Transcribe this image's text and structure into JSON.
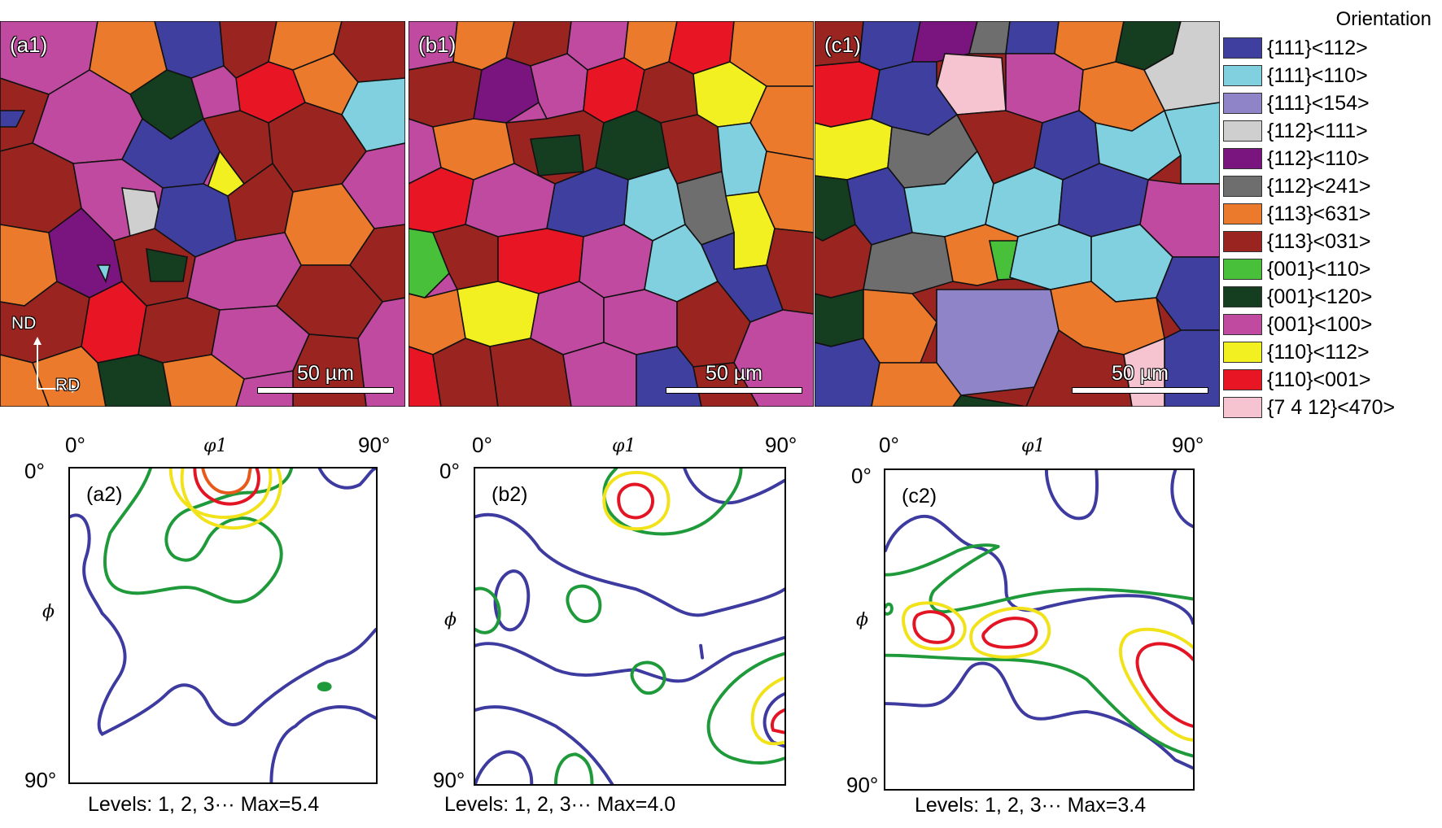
{
  "maps": [
    {
      "label": "(a1)",
      "scale": "50 µm",
      "nd": "ND",
      "rd": "RD"
    },
    {
      "label": "(b1)",
      "scale": "50 µm"
    },
    {
      "label": "(c1)",
      "scale": "50 µm"
    }
  ],
  "legend": {
    "title": "Orientation",
    "items": [
      {
        "label": "{111}<112>",
        "color": "#3f3fa0"
      },
      {
        "label": "{111}<110>",
        "color": "#80d0e0"
      },
      {
        "label": "{111}<154>",
        "color": "#8f84c8"
      },
      {
        "label": "{112}<111>",
        "color": "#cfcfcf"
      },
      {
        "label": "{112}<110>",
        "color": "#7a157f"
      },
      {
        "label": "{112}<241>",
        "color": "#6e6e6e"
      },
      {
        "label": "{113}<631>",
        "color": "#ec7a2c"
      },
      {
        "label": "{113}<031>",
        "color": "#9a2520"
      },
      {
        "label": "{001}<110>",
        "color": "#48c03a"
      },
      {
        "label": "{001}<120>",
        "color": "#153e20"
      },
      {
        "label": "{001}<100>",
        "color": "#c04aa0"
      },
      {
        "label": "{110}<112>",
        "color": "#f2f020"
      },
      {
        "label": "{110}<001>",
        "color": "#e81525"
      },
      {
        "label": "{7 4 12}<470>",
        "color": "#f6c4d0"
      }
    ]
  },
  "odf": [
    {
      "label": "(a2)",
      "tick_x0": "0°",
      "tick_x90": "90°",
      "tick_y0": "0°",
      "tick_y90": "90°",
      "xaxis": "φ1",
      "yaxis": "ϕ",
      "levels": "Levels: 1, 2, 3··· Max=5.4"
    },
    {
      "label": "(b2)",
      "tick_x0": "0°",
      "tick_x90": "90°",
      "tick_y0": "0°",
      "tick_y90": "90°",
      "xaxis": "φ1",
      "yaxis": "ϕ",
      "levels": "Levels: 1, 2, 3··· Max=4.0"
    },
    {
      "label": "(c2)",
      "tick_x0": "0°",
      "tick_x90": "90°",
      "tick_y0": "0°",
      "tick_y90": "90°",
      "xaxis": "φ1",
      "yaxis": "ϕ",
      "levels": "Levels: 1, 2, 3··· Max=3.4"
    }
  ],
  "contour_colors": {
    "level1": "#3d3aa0",
    "level2": "#1f9a3a",
    "level3": "#f2e21a",
    "level4": "#e31525",
    "level5": "#e85a1c"
  }
}
